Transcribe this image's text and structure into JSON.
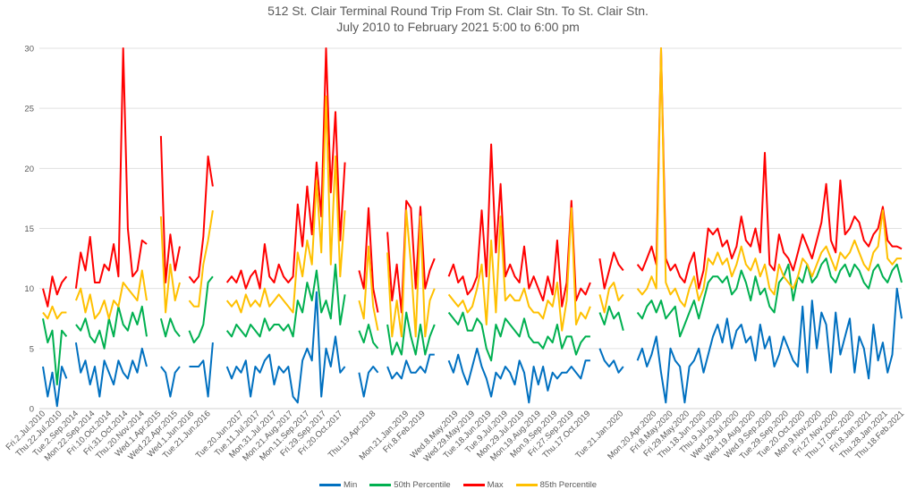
{
  "chart_data": {
    "type": "line",
    "title": "512 St. Clair Terminal Round Trip From St. Clair Stn. To St. Clair Stn.",
    "subtitle": "July 2010 to February 2021 5:00 to 6:00 pm",
    "xlabel": "",
    "ylabel": "",
    "ylim": [
      0,
      30
    ],
    "y_ticks": [
      0,
      5,
      10,
      15,
      20,
      25,
      30
    ],
    "grid": "horizontal",
    "legend_position": "bottom",
    "x_max_point": 728,
    "sample_step": 4,
    "x_ticks": [
      {
        "point": 0,
        "label": "Fri.2.Jul.2010"
      },
      {
        "point": 14,
        "label": "Thu.22.Jul.2010"
      },
      {
        "point": 28,
        "label": "Tue.2.Sep.2014"
      },
      {
        "point": 42,
        "label": "Mon.22.Sep.2014"
      },
      {
        "point": 56,
        "label": "Fri.10.Oct.2014"
      },
      {
        "point": 70,
        "label": "Fri.31.Oct.2014"
      },
      {
        "point": 84,
        "label": "Thu.20.Nov.2014"
      },
      {
        "point": 98,
        "label": "Wed.1.Apr.2015"
      },
      {
        "point": 112,
        "label": "Wed.22.Apr.2015"
      },
      {
        "point": 126,
        "label": "Wed.1.Jun.2016"
      },
      {
        "point": 140,
        "label": "Tue.21.Jun.2016"
      },
      {
        "point": 168,
        "label": "Tue.20.Jun.2017"
      },
      {
        "point": 182,
        "label": "Tue.11.Jul.2017"
      },
      {
        "point": 196,
        "label": "Mon.31.Jul.2017"
      },
      {
        "point": 210,
        "label": "Mon.21.Aug.2017"
      },
      {
        "point": 224,
        "label": "Mon.11.Sep.2017"
      },
      {
        "point": 238,
        "label": "Fri.29.Sep.2017"
      },
      {
        "point": 252,
        "label": "Fri.20.Oct.2017"
      },
      {
        "point": 280,
        "label": "Thu.19.Apr.2018"
      },
      {
        "point": 308,
        "label": "Mon.21.Jan.2019"
      },
      {
        "point": 322,
        "label": "Fri.8.Feb.2019"
      },
      {
        "point": 350,
        "label": "Wed.8.May.2019"
      },
      {
        "point": 364,
        "label": "Wed.29.May.2019"
      },
      {
        "point": 378,
        "label": "Tue.18.Jun.2019"
      },
      {
        "point": 392,
        "label": "Tue.9.Jul.2019"
      },
      {
        "point": 406,
        "label": "Mon.29.Jul.2019"
      },
      {
        "point": 420,
        "label": "Mon.19.Aug.2019"
      },
      {
        "point": 434,
        "label": "Mon.9.Sep.2019"
      },
      {
        "point": 448,
        "label": "Fri.27.Sep.2019"
      },
      {
        "point": 462,
        "label": "Thu.17.Oct.2019"
      },
      {
        "point": 490,
        "label": "Tue.21.Jan.2020"
      },
      {
        "point": 518,
        "label": "Mon.20.Apr.2020"
      },
      {
        "point": 532,
        "label": "Fri.8.May.2020"
      },
      {
        "point": 546,
        "label": "Fri.29.May.2020"
      },
      {
        "point": 560,
        "label": "Thu.18.Jun.2020"
      },
      {
        "point": 574,
        "label": "Thu.9.Jul.2020"
      },
      {
        "point": 588,
        "label": "Wed.29.Jul.2020"
      },
      {
        "point": 602,
        "label": "Wed.19.Aug.2020"
      },
      {
        "point": 616,
        "label": "Wed.9.Sep.2020"
      },
      {
        "point": 630,
        "label": "Tue.29.Sep.2020"
      },
      {
        "point": 644,
        "label": "Tue.20.Oct.2020"
      },
      {
        "point": 658,
        "label": "Mon.9.Nov.2020"
      },
      {
        "point": 672,
        "label": "Fri.27.Nov.2020"
      },
      {
        "point": 686,
        "label": "Thu.17.Dec.2020"
      },
      {
        "point": 700,
        "label": "Fri.8.Jan.2021"
      },
      {
        "point": 714,
        "label": "Thu.28.Jan.2021"
      },
      {
        "point": 728,
        "label": "Thu.18.Feb.2021"
      }
    ],
    "series": [
      {
        "name": "Min",
        "color": "#0070C0",
        "values": [
          3.5,
          1,
          3,
          0.2,
          3.5,
          2.5,
          null,
          5.5,
          3,
          4,
          2,
          3.5,
          1,
          4,
          3,
          2,
          4,
          3,
          2.5,
          4,
          3,
          5,
          3.5,
          null,
          null,
          3.5,
          3,
          1,
          3,
          3.5,
          null,
          3.5,
          3.5,
          3.5,
          4,
          1,
          5.5,
          null,
          null,
          3.5,
          2.5,
          3.5,
          3,
          4,
          1,
          3.5,
          3,
          4,
          4.5,
          2,
          3.5,
          3,
          3.5,
          1,
          0.5,
          4,
          5,
          4,
          9.7,
          1,
          5,
          3.5,
          6,
          3,
          3.5,
          null,
          null,
          3,
          1,
          3,
          3.5,
          3,
          null,
          3.5,
          2.5,
          3,
          2.5,
          4,
          3,
          3,
          3.5,
          3,
          4.5,
          4.5,
          null,
          null,
          4,
          3,
          4.5,
          3,
          2,
          3.5,
          5,
          3.5,
          2.5,
          1,
          3,
          2.5,
          3.5,
          3,
          2,
          4,
          3,
          0.5,
          3.5,
          2,
          3.5,
          1.5,
          3,
          2.5,
          3,
          3,
          3.5,
          3,
          2.5,
          4,
          4,
          null,
          5,
          4,
          3.5,
          4,
          3,
          3.5,
          null,
          null,
          4,
          5,
          3.5,
          4.5,
          6,
          3,
          0.5,
          5,
          4,
          3.5,
          0.5,
          3.5,
          4,
          5,
          3,
          4.5,
          6,
          7,
          5.5,
          7.5,
          5,
          6.5,
          7,
          5.5,
          6,
          4,
          7,
          5,
          6,
          3.5,
          4.5,
          6,
          5,
          4,
          3.5,
          8.5,
          3,
          9,
          5,
          8,
          7,
          3,
          8,
          4.5,
          6,
          7.5,
          3,
          6,
          5,
          2.5,
          7,
          4,
          5.5,
          3,
          4.5,
          10,
          7.5
        ]
      },
      {
        "name": "50th Percentile",
        "color": "#00B050",
        "values": [
          7.5,
          5.5,
          6.5,
          2,
          6.5,
          6,
          null,
          7,
          6.5,
          7.5,
          6,
          5.5,
          6.5,
          5,
          7.5,
          6,
          8.5,
          7,
          6.5,
          8,
          7,
          8.5,
          6,
          null,
          null,
          7.5,
          6,
          7.5,
          6.5,
          6,
          null,
          6.5,
          5.5,
          6,
          7,
          10.5,
          11,
          null,
          null,
          6.5,
          6,
          7,
          6.5,
          6,
          7,
          6.5,
          6,
          7.5,
          6.5,
          7,
          7,
          6.5,
          7,
          6,
          9,
          8,
          10.5,
          9,
          11.5,
          8,
          9,
          7.5,
          12,
          7,
          9.5,
          null,
          null,
          6.5,
          5.5,
          7,
          5.5,
          5,
          null,
          7,
          4.5,
          5.5,
          4.5,
          8,
          6,
          4.5,
          7,
          4.5,
          6,
          7,
          null,
          null,
          8,
          7.5,
          7,
          8,
          6.5,
          6.5,
          7.5,
          7,
          5,
          4,
          7,
          6,
          7.5,
          7,
          6.5,
          6,
          7.5,
          6,
          5.5,
          5.5,
          5,
          6,
          5.5,
          7,
          5,
          6,
          6,
          4.5,
          5.5,
          6,
          6,
          null,
          8,
          7,
          8.5,
          7.5,
          8,
          6.5,
          null,
          null,
          8,
          7.5,
          8.5,
          9,
          8,
          9,
          7.5,
          8,
          8.5,
          6,
          7,
          8,
          9,
          7.5,
          9,
          10.5,
          11,
          11,
          10.5,
          11,
          9.5,
          10,
          11.5,
          10.5,
          9,
          11,
          9.5,
          10,
          8.5,
          8,
          10.5,
          11,
          12,
          9,
          11,
          10.5,
          12,
          10.5,
          11,
          12,
          12.5,
          11,
          10.5,
          11.5,
          12,
          11,
          12,
          11.5,
          10.5,
          10,
          11.5,
          12,
          11,
          10.5,
          11.5,
          12,
          10.5
        ]
      },
      {
        "name": "Max",
        "color": "#FF0000",
        "values": [
          10,
          8.5,
          11,
          9.5,
          10.5,
          11,
          null,
          10,
          13,
          11.5,
          14.3,
          10.5,
          10.5,
          12,
          11.5,
          13.7,
          11,
          30,
          15,
          11,
          11.5,
          14,
          13.7,
          null,
          null,
          22.7,
          10.5,
          14.5,
          11.5,
          13.5,
          null,
          11,
          10.5,
          11,
          14.3,
          21,
          18.5,
          null,
          null,
          10.5,
          11,
          10.5,
          11.5,
          10,
          11,
          11.5,
          10,
          13.7,
          11,
          10.5,
          12,
          11,
          10.5,
          11,
          17,
          13.5,
          18.5,
          14.5,
          20.5,
          16,
          30,
          18,
          24.7,
          14,
          20.5,
          null,
          null,
          11.5,
          10,
          16.7,
          10,
          8,
          null,
          14.7,
          9,
          12,
          8,
          17.3,
          16.7,
          10,
          16.8,
          10,
          11.5,
          12.5,
          null,
          null,
          11,
          12,
          10.5,
          11,
          9.5,
          10,
          11,
          16.5,
          11,
          22,
          13,
          18.7,
          11,
          12,
          11,
          10.5,
          13.5,
          10,
          11,
          10,
          9,
          11,
          9.5,
          14,
          8.5,
          10.5,
          17.3,
          9,
          10,
          9.5,
          10.5,
          null,
          12.5,
          10,
          11.5,
          13,
          12,
          11.5,
          null,
          null,
          12,
          11.5,
          12.5,
          13.5,
          12,
          30,
          12.5,
          11.5,
          12,
          11,
          10.5,
          12,
          13,
          10,
          11.5,
          15,
          14.5,
          15,
          13.5,
          14,
          12.5,
          13.5,
          16,
          14,
          13.5,
          15,
          13,
          21.3,
          12,
          11.5,
          14.5,
          13,
          12.5,
          11.5,
          13,
          14.5,
          13.5,
          12.5,
          14,
          15.5,
          18.7,
          14,
          13,
          19,
          14.5,
          15,
          16,
          15.5,
          14,
          13.5,
          14.5,
          15,
          16.8,
          14,
          13.5,
          13.5,
          13.3
        ]
      },
      {
        "name": "85th Percentile",
        "color": "#FFC000",
        "values": [
          8,
          7.5,
          8.5,
          7.5,
          8,
          8,
          null,
          9,
          10,
          8,
          9.5,
          7.5,
          8,
          9,
          7.5,
          9,
          8.5,
          10.5,
          10,
          9.5,
          9,
          11.5,
          9,
          null,
          null,
          16,
          8,
          12,
          9,
          10.5,
          null,
          9,
          8.5,
          8.5,
          12,
          14,
          16.5,
          null,
          null,
          9,
          8.5,
          9,
          8,
          9.5,
          8.5,
          9,
          8.5,
          10,
          8.5,
          9,
          9.5,
          9,
          8.5,
          8,
          13,
          11,
          14,
          12,
          19,
          13,
          26,
          12,
          21,
          11,
          16.5,
          null,
          null,
          9,
          7.5,
          13.5,
          8.5,
          6.5,
          null,
          13,
          6,
          9,
          6,
          16.5,
          12,
          6,
          16,
          6,
          9,
          10,
          null,
          null,
          9.5,
          9,
          8.5,
          9,
          8,
          8.5,
          10,
          12,
          7,
          14,
          8,
          16,
          9,
          9.5,
          9,
          9,
          10,
          8.5,
          8,
          8,
          7.5,
          9,
          8.5,
          10.5,
          6.5,
          9,
          16.7,
          7,
          8,
          7.5,
          8.5,
          null,
          9.5,
          8,
          10,
          10.5,
          9,
          9.5,
          null,
          null,
          10,
          9.5,
          10,
          11,
          10,
          30,
          10.5,
          9.5,
          10,
          9,
          8.5,
          10,
          11,
          9,
          10,
          12.5,
          12,
          13,
          12,
          12.5,
          11,
          12,
          13.5,
          12,
          11.5,
          12.5,
          11,
          12,
          10,
          9.5,
          12,
          11,
          10.5,
          10,
          11,
          12.5,
          12,
          11,
          12,
          13,
          13.5,
          12.5,
          11.5,
          13,
          12.5,
          13,
          14,
          13,
          12,
          11.5,
          13,
          13.5,
          16.5,
          12.5,
          12,
          12.5,
          12.5
        ]
      }
    ]
  }
}
